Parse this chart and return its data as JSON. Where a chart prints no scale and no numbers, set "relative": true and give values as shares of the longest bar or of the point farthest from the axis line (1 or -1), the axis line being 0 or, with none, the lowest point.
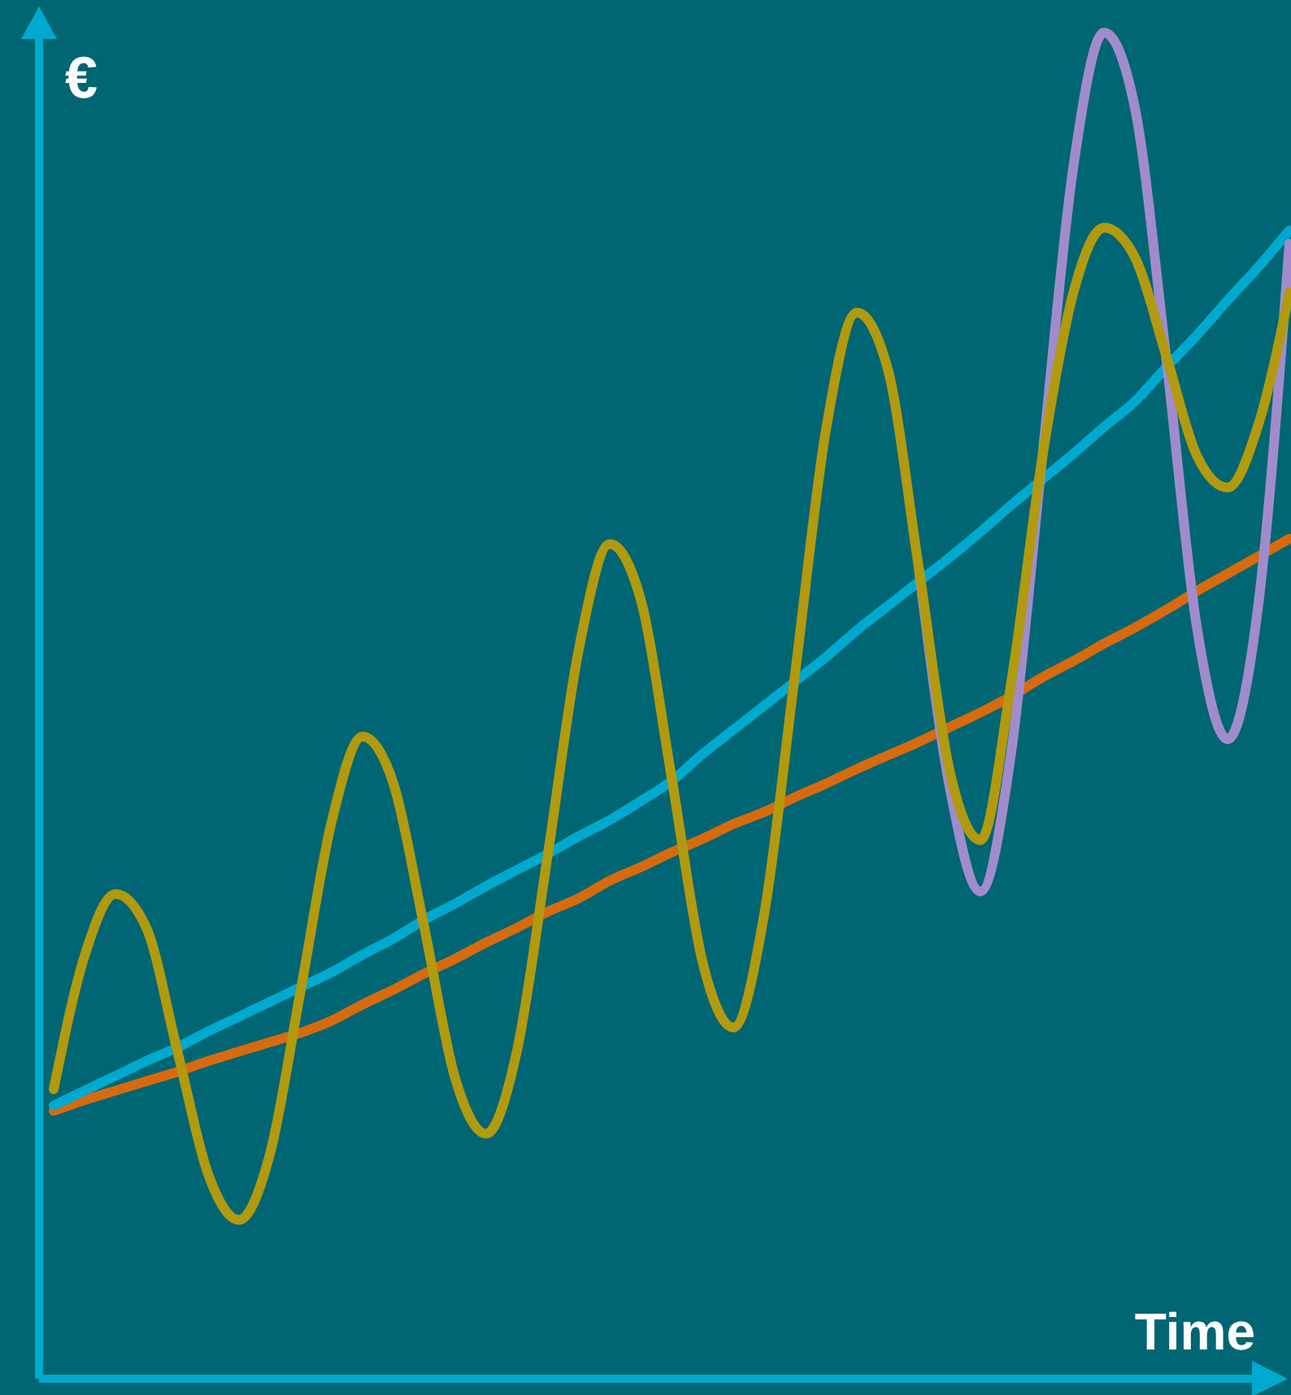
{
  "chart_data": {
    "type": "line",
    "relative": true,
    "xlabel": "Time",
    "ylabel": "€",
    "categories": [
      null,
      null,
      null,
      null,
      null,
      null,
      null,
      null,
      null,
      null,
      null,
      null,
      null,
      null,
      null,
      null,
      null,
      null,
      null,
      null,
      null,
      null,
      null,
      null,
      null,
      null,
      null,
      null,
      null,
      null,
      null,
      null,
      null,
      null,
      null,
      null,
      null,
      null,
      null,
      null,
      null
    ],
    "series": [
      {
        "color": "#d86a0e",
        "values": [
          0.199,
          0.207,
          0.214,
          0.221,
          0.228,
          0.236,
          0.243,
          0.25,
          0.257,
          0.266,
          0.278,
          0.289,
          0.301,
          0.312,
          0.324,
          0.335,
          0.347,
          0.357,
          0.37,
          0.38,
          0.391,
          0.401,
          0.412,
          0.421,
          0.432,
          0.442,
          0.453,
          0.463,
          0.473,
          0.484,
          0.495,
          0.507,
          0.521,
          0.533,
          0.546,
          0.558,
          0.571,
          0.585,
          0.598,
          0.611,
          0.624
        ]
      },
      {
        "color": "#00a9ce",
        "values": [
          0.203,
          0.214,
          0.225,
          0.236,
          0.246,
          0.258,
          0.269,
          0.28,
          0.291,
          0.302,
          0.315,
          0.327,
          0.341,
          0.353,
          0.366,
          0.378,
          0.39,
          0.403,
          0.415,
          0.429,
          0.444,
          0.464,
          0.482,
          0.5,
          0.518,
          0.536,
          0.556,
          0.574,
          0.592,
          0.61,
          0.629,
          0.649,
          0.668,
          0.687,
          0.707,
          0.726,
          0.751,
          0.775,
          0.801,
          0.826,
          0.853
        ]
      },
      {
        "color": "#a08ccc",
        "values": [
          null,
          null,
          null,
          null,
          null,
          null,
          null,
          null,
          null,
          null,
          null,
          null,
          null,
          null,
          null,
          null,
          null,
          null,
          null,
          null,
          null,
          null,
          null,
          null,
          null,
          null,
          null,
          null,
          0.603,
          0.44,
          0.362,
          0.466,
          0.684,
          0.899,
          1,
          0.944,
          0.761,
          0.559,
          0.475,
          0.576,
          0.843
        ]
      },
      {
        "color": "#b19a0e",
        "values": [
          0.215,
          0.314,
          0.36,
          0.335,
          0.244,
          0.152,
          0.118,
          0.167,
          0.289,
          0.414,
          0.477,
          0.442,
          0.335,
          0.223,
          0.182,
          0.244,
          0.39,
          0.542,
          0.62,
          0.579,
          0.447,
          0.31,
          0.261,
          0.345,
          0.524,
          0.705,
          0.792,
          0.75,
          0.603,
          0.452,
          0.4,
          0.518,
          0.684,
          0.806,
          0.855,
          0.833,
          0.761,
          0.686,
          0.662,
          0.709,
          0.807
        ]
      }
    ]
  }
}
